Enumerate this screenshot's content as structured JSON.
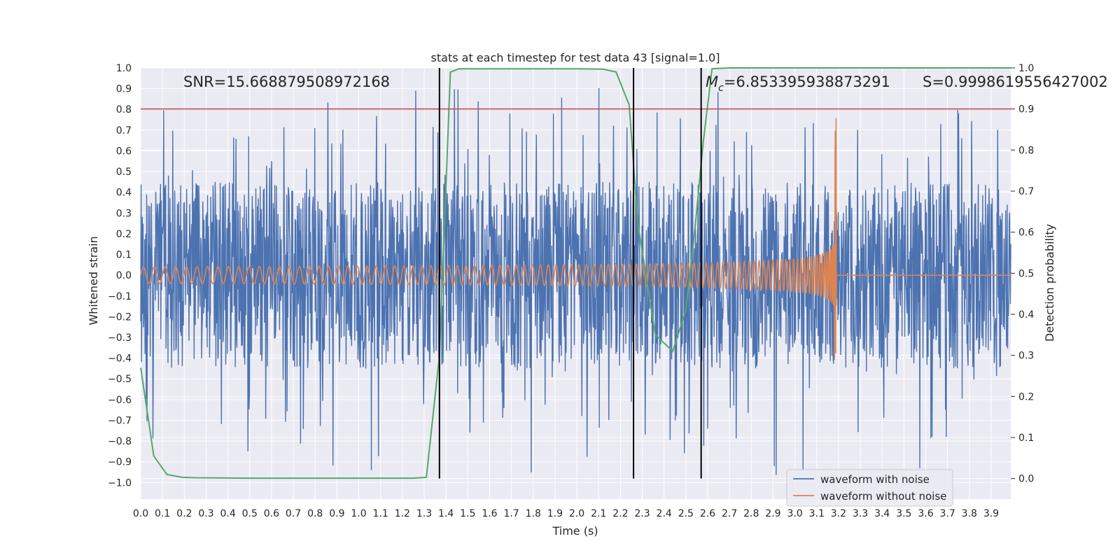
{
  "chart_data": {
    "type": "line",
    "title": "stats at each timestep for test data 43 [signal=1.0]",
    "xlabel": "Time (s)",
    "ylabel": "Whitened strain",
    "y2label": "Detection probability",
    "xlim": [
      0.0,
      3.99
    ],
    "ylim": [
      -1.08,
      1.0
    ],
    "y2lim": [
      -0.05,
      1.0
    ],
    "xticks": [
      "0.0",
      "0.1",
      "0.2",
      "0.3",
      "0.4",
      "0.5",
      "0.6",
      "0.7",
      "0.8",
      "0.9",
      "1.0",
      "1.1",
      "1.2",
      "1.3",
      "1.4",
      "1.5",
      "1.6",
      "1.7",
      "1.8",
      "1.9",
      "2.0",
      "2.1",
      "2.2",
      "2.3",
      "2.4",
      "2.5",
      "2.6",
      "2.7",
      "2.8",
      "2.9",
      "3.0",
      "3.1",
      "3.2",
      "3.3",
      "3.4",
      "3.5",
      "3.6",
      "3.7",
      "3.8",
      "3.9"
    ],
    "yticks": [
      "1.0",
      "0.9",
      "0.8",
      "0.7",
      "0.6",
      "0.5",
      "0.4",
      "0.3",
      "0.2",
      "0.1",
      "0.0",
      "−0.1",
      "−0.2",
      "−0.3",
      "−0.4",
      "−0.5",
      "−0.6",
      "−0.7",
      "−0.8",
      "−0.9",
      "−1.0"
    ],
    "y2ticks": [
      "1.0",
      "0.9",
      "0.8",
      "0.7",
      "0.6",
      "0.5",
      "0.4",
      "0.3",
      "0.2",
      "0.1",
      "0.0"
    ],
    "annotations": {
      "snr": "SNR=15.668879508972168",
      "mc_symbol": "M",
      "mc_sub": "c",
      "mc_value": "=6.853395938873291",
      "s": "S=0.9998619556427002"
    },
    "threshold": {
      "y2": 0.9,
      "color": "#c44e52"
    },
    "vertical_lines_x": [
      1.37,
      2.26,
      2.57
    ],
    "series": [
      {
        "name": "waveform with noise",
        "color": "#4c72b0",
        "kind": "noise",
        "amplitude_range": [
          -1.0,
          0.92
        ],
        "x_range": [
          0.0,
          3.99
        ]
      },
      {
        "name": "waveform without noise",
        "color": "#dd8452",
        "kind": "chirp",
        "merger_time": 3.19,
        "start_amplitude": 0.04,
        "peak_amplitude": [
          -0.42,
          0.82
        ]
      },
      {
        "name": "detection probability",
        "color": "#55a868",
        "axis": "y2",
        "x": [
          0.0,
          0.06,
          0.12,
          0.19,
          0.25,
          0.5,
          1.0,
          1.25,
          1.31,
          1.37,
          1.42,
          1.46,
          2.0,
          2.12,
          2.18,
          2.24,
          2.28,
          2.36,
          2.44,
          2.5,
          2.54,
          2.58,
          2.62,
          2.7,
          3.0,
          3.5,
          3.99
        ],
        "y": [
          0.27,
          0.055,
          0.01,
          0.003,
          0.002,
          0.001,
          0.001,
          0.001,
          0.003,
          0.3,
          0.99,
          0.998,
          0.998,
          0.997,
          0.99,
          0.91,
          0.62,
          0.35,
          0.31,
          0.41,
          0.6,
          0.82,
          0.998,
          1.0,
          1.0,
          1.0,
          1.0
        ]
      }
    ],
    "legend": {
      "position": "bottom-right",
      "entries": [
        "waveform with noise",
        "waveform without noise"
      ]
    }
  }
}
